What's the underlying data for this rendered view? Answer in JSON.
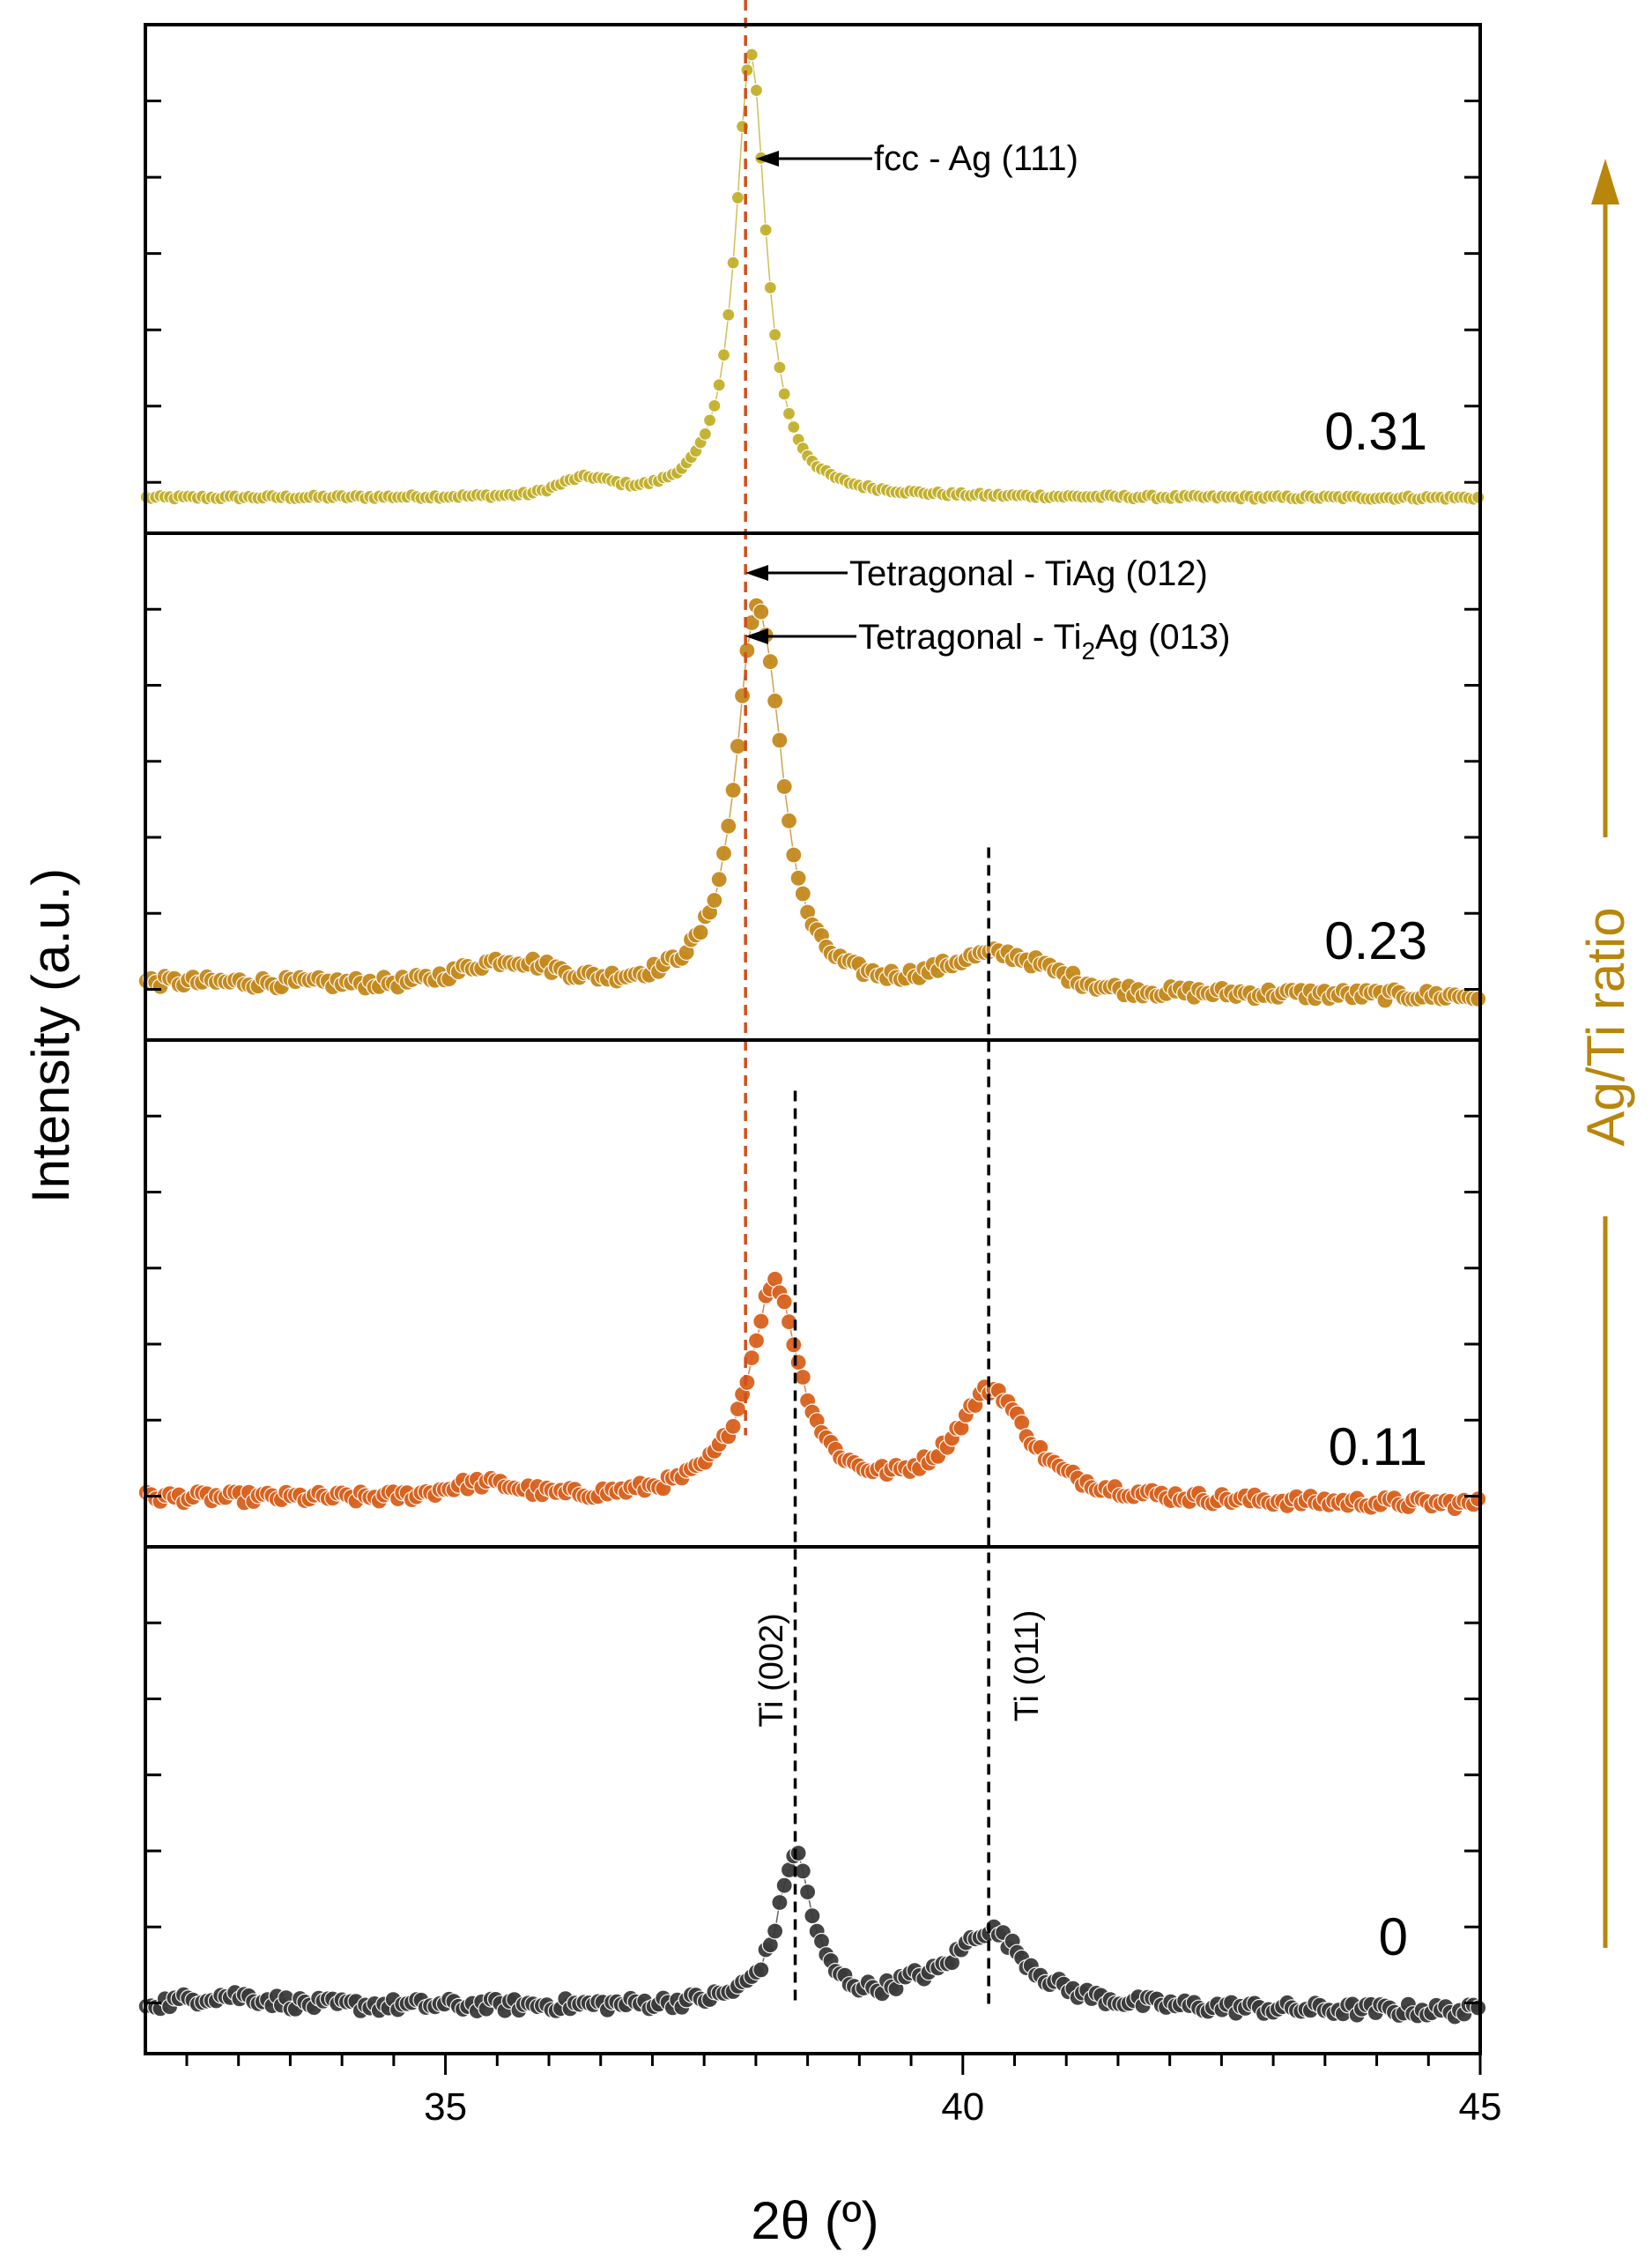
{
  "chart_data": {
    "type": "scatter",
    "title": "",
    "xlabel": "2θ (º)",
    "ylabel": "Intensity (a.u.)",
    "ratio_arrow_label": "Ag/Ti ratio",
    "xlim": [
      32.1,
      45
    ],
    "xticks": [
      35,
      40,
      45
    ],
    "tick_labels": [
      "35",
      "40",
      "45"
    ],
    "grid": false,
    "colors": {
      "0.31": "#c2b02c",
      "0.23": "#c48a1e",
      "0.11": "#d8621e",
      "0": "#3a3a3a",
      "ag_reference_line": "#d0501a",
      "ratio_arrow": "#b8860b"
    },
    "series": [
      {
        "name": "0.31",
        "panel": 0,
        "peaks": [
          {
            "center": 37.95,
            "height": 1.0,
            "width": 0.18,
            "shape": "lorentz"
          },
          {
            "center": 36.35,
            "height": 0.035,
            "width": 0.35,
            "shape": "gauss"
          }
        ],
        "baseline": 0.0,
        "noise": 0.004,
        "y_max": 1.03
      },
      {
        "name": "0.23",
        "panel": 1,
        "peaks": [
          {
            "center": 37.98,
            "height": 0.72,
            "width": 0.22,
            "shape": "lorentz"
          },
          {
            "center": 38.18,
            "height": 0.25,
            "width": 0.18,
            "shape": "lorentz"
          },
          {
            "center": 35.6,
            "height": 0.05,
            "width": 0.6,
            "shape": "gauss"
          },
          {
            "center": 40.35,
            "height": 0.075,
            "width": 0.7,
            "shape": "gauss"
          }
        ],
        "baseline": 0.05,
        "noise": 0.012,
        "y_max": 1.0
      },
      {
        "name": "0.11",
        "panel": 2,
        "peaks": [
          {
            "center": 38.18,
            "height": 0.47,
            "width": 0.3,
            "shape": "lorentz"
          },
          {
            "center": 40.28,
            "height": 0.24,
            "width": 0.42,
            "shape": "lorentz"
          },
          {
            "center": 35.35,
            "height": 0.03,
            "width": 0.5,
            "shape": "gauss"
          }
        ],
        "baseline": 0.03,
        "noise": 0.012,
        "y_max": 1.0
      },
      {
        "name": "0",
        "panel": 3,
        "peaks": [
          {
            "center": 38.38,
            "height": 0.33,
            "width": 0.2,
            "shape": "lorentz"
          },
          {
            "center": 40.25,
            "height": 0.17,
            "width": 0.45,
            "shape": "lorentz"
          },
          {
            "center": 32.9,
            "height": 0.02,
            "width": 0.5,
            "shape": "gauss"
          },
          {
            "center": 39.5,
            "height": 0.015,
            "width": 0.2,
            "shape": "gauss"
          }
        ],
        "baseline": 0.03,
        "noise": 0.014,
        "y_max": 1.0
      }
    ],
    "sample_labels": [
      "0.31",
      "0.23",
      "0.11",
      "0"
    ],
    "reference_lines": [
      {
        "name": "fcc Ag (111)",
        "x": 37.9,
        "style": "dashed",
        "color_key": "ag_reference_line",
        "from_panel": 0,
        "to_panel": 2,
        "to_y_fraction": 0.78
      },
      {
        "name": "Ti (002)",
        "x": 38.38,
        "style": "dashed",
        "color_key": "0",
        "from_panel": 2,
        "from_y_fraction": 0.1,
        "to_panel": 3,
        "to_y_fraction": 1.0
      },
      {
        "name": "Ti (011)",
        "x": 40.25,
        "style": "dashed",
        "color_key": "0",
        "from_panel": 1,
        "from_y_fraction": 0.62,
        "to_panel": 3,
        "to_y_fraction": 1.0
      }
    ],
    "annotations": [
      {
        "text": "fcc - Ag (111)",
        "panel": 0
      },
      {
        "text": "Tetragonal - TiAg (012)",
        "panel": 1
      },
      {
        "text": "Tetragonal - Ti",
        "subscript": "2",
        "tail": "Ag (013)",
        "panel": 1
      },
      {
        "text": "Ti (002)",
        "panel": 3,
        "rotated": true
      },
      {
        "text": "Ti (011)",
        "panel": 3,
        "rotated": true
      }
    ]
  }
}
